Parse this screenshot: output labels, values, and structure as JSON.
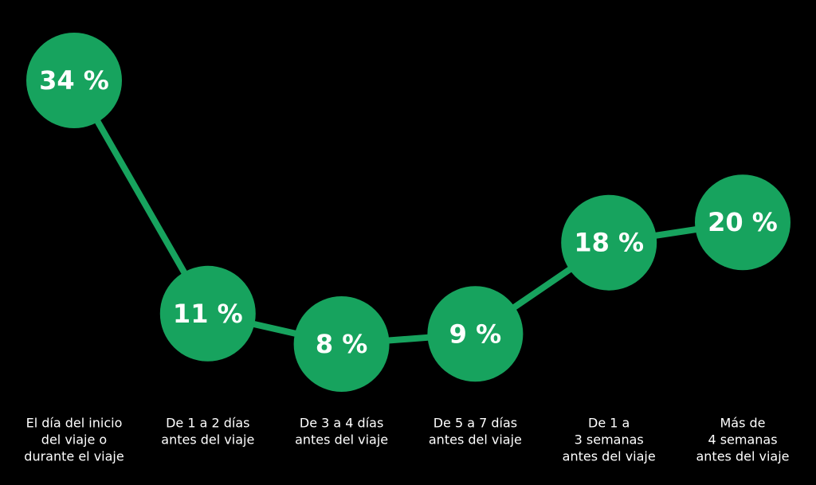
{
  "chart_data": {
    "type": "line",
    "categories": [
      [
        "El día del inicio",
        "del viaje o",
        "durante el viaje"
      ],
      [
        "De 1 a 2 días",
        "antes del viaje"
      ],
      [
        "De 3 a 4 días",
        "antes del viaje"
      ],
      [
        "De 5 a 7 días",
        "antes del viaje"
      ],
      [
        "De 1 a",
        "3 semanas",
        "antes del viaje"
      ],
      [
        "Más de",
        "4 semanas",
        "antes del viaje"
      ]
    ],
    "values": [
      34,
      11,
      8,
      9,
      18,
      20
    ],
    "value_labels": [
      "34 %",
      "11 %",
      "8 %",
      "9 %",
      "18 %",
      "20 %"
    ],
    "color": "#17a35e"
  }
}
